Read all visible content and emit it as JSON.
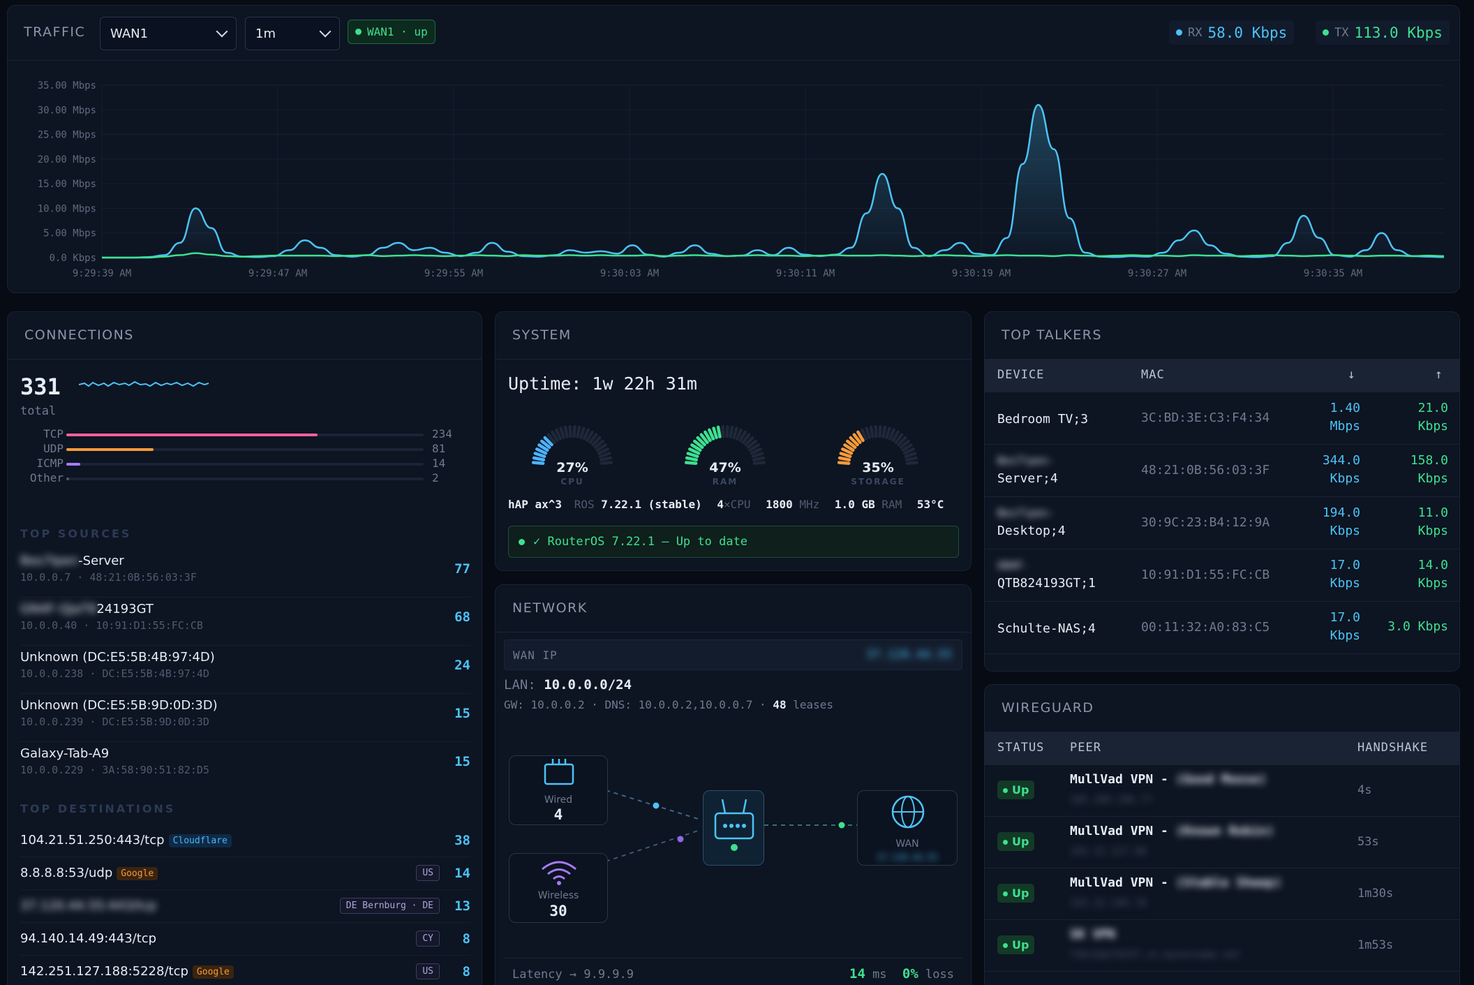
{
  "traffic": {
    "title": "TRAFFIC",
    "interface": "WAN1",
    "interval": "1m",
    "status": "WAN1 · up",
    "rx_label": "RX",
    "rx_value": "58.0 Kbps",
    "tx_label": "TX",
    "tx_value": "113.0 Kbps"
  },
  "chart_data": {
    "type": "area",
    "title": "",
    "xlabel": "",
    "ylabel": "",
    "y_ticks": [
      "35.00 Mbps",
      "30.00 Mbps",
      "25.00 Mbps",
      "20.00 Mbps",
      "15.00 Mbps",
      "10.00 Mbps",
      "5.00 Mbps",
      "0.0 Kbps"
    ],
    "x_ticks": [
      "9:29:39 AM",
      "9:29:47 AM",
      "9:29:55 AM",
      "9:30:03 AM",
      "9:30:11 AM",
      "9:30:19 AM",
      "9:30:27 AM",
      "9:30:35 AM"
    ],
    "ylim": [
      0,
      35
    ],
    "y_unit": "Mbps",
    "grid": true,
    "colors": {
      "rx": "#4cc3f5",
      "tx": "#3ee08f"
    },
    "series": [
      {
        "values": [
          0,
          0,
          0,
          0.1,
          0.5,
          3,
          10,
          6,
          1,
          0.2,
          0.1,
          0.3,
          1.5,
          3.5,
          2,
          0.5,
          0.2,
          0.5,
          2,
          3,
          1.5,
          2,
          1,
          0.3,
          1,
          3,
          1.2,
          0.3,
          0.2,
          0.5,
          1.5,
          1,
          1.3,
          0.8,
          2.5,
          0.6,
          0.2,
          1,
          2.5,
          0.8,
          0.3,
          0.4,
          1.5,
          0.5,
          2,
          0.6,
          0.3,
          0.6,
          2,
          9,
          17,
          10,
          2,
          0.3,
          1.5,
          3,
          0.8,
          0.5,
          4,
          19,
          31,
          22,
          8,
          1,
          0.2,
          0.1,
          0.3,
          0.2,
          1,
          3.5,
          5.5,
          2.5,
          0.8,
          0.2,
          0.1,
          0.3,
          3,
          8.5,
          4,
          0.5,
          0.2,
          1.5,
          5,
          1.5,
          0.3,
          0.2,
          0.1
        ]
      },
      {
        "values": [
          0,
          0,
          0,
          0,
          0.2,
          0.5,
          0.9,
          0.6,
          0.3,
          0.2,
          0.3,
          0.4,
          0.4,
          0.4,
          0.4,
          0.3,
          0.4,
          0.5,
          0.3,
          0.4,
          0.5,
          0.4,
          0.3,
          0.4,
          0.5,
          0.4,
          0.3,
          0.5,
          0.4,
          0.4,
          0.5,
          0.4,
          0.5,
          0.4,
          0.4,
          0.5,
          0.3,
          0.4,
          0.5,
          0.4,
          0.3,
          0.4,
          0.5,
          0.4,
          0.4,
          0.3,
          0.4,
          0.5,
          0.4,
          0.4,
          0.5,
          0.4,
          0.3,
          0.4,
          0.5,
          0.4,
          0.3,
          0.4,
          0.5,
          0.4,
          0.4,
          0.3,
          0.5,
          0.4,
          0.3,
          0.4,
          0.5,
          0.4,
          0.4,
          0.3,
          0.5,
          0.4,
          0.4,
          0.3,
          0.4,
          0.5,
          0.4,
          0.3,
          0.4,
          0.5,
          0.4,
          0.3,
          0.4,
          0.4,
          0.3,
          0.4,
          0.3
        ]
      }
    ]
  },
  "connections": {
    "title": "CONNECTIONS",
    "total": "331",
    "total_label": "total",
    "protocols": [
      {
        "name": "TCP",
        "count": "234",
        "fraction": 0.703,
        "color": "#f0609e"
      },
      {
        "name": "UDP",
        "count": "81",
        "fraction": 0.244,
        "color": "#f59a3a"
      },
      {
        "name": "ICMP",
        "count": "14",
        "fraction": 0.04,
        "color": "#a77bf3"
      },
      {
        "name": "Other",
        "count": "2",
        "fraction": 0.006,
        "color": "#4f5b6e"
      }
    ],
    "top_sources_title": "TOP SOURCES",
    "sources": [
      {
        "name_hidden": "Bes7lpen",
        "name": "-Server",
        "detail": "10.0.0.7 · 48:21:0B:56:03:3F",
        "count": "77"
      },
      {
        "name_hidden": "GN4F-QJaT8",
        "name": "24193GT",
        "detail": "10.0.0.40 · 10:91:D1:55:FC:CB",
        "count": "68"
      },
      {
        "name_hidden": "",
        "name": "Unknown (DC:E5:5B:4B:97:4D)",
        "detail": "10.0.0.238 · DC:E5:5B:4B:97:4D",
        "count": "24"
      },
      {
        "name_hidden": "",
        "name": "Unknown (DC:E5:5B:9D:0D:3D)",
        "detail": "10.0.0.239 · DC:E5:5B:9D:0D:3D",
        "count": "15"
      },
      {
        "name_hidden": "",
        "name": "Galaxy-Tab-A9",
        "detail": "10.0.0.229 · 3A:58:90:51:82:D5",
        "count": "15"
      }
    ],
    "top_destinations_title": "TOP DESTINATIONS",
    "destinations": [
      {
        "addr": "104.21.51.250:443/tcp",
        "tag": "Cloudflare",
        "country": "",
        "count": "38"
      },
      {
        "addr": "8.8.8.8:53/udp",
        "tag": "Google",
        "country": "US",
        "count": "14"
      },
      {
        "addr": "37.120.44.55:443/tcp",
        "tag": "",
        "country": "DE Bernburg · DE",
        "count": "13",
        "hidden": true
      },
      {
        "addr": "94.140.14.49:443/tcp",
        "tag": "",
        "country": "CY",
        "count": "8"
      },
      {
        "addr": "142.251.127.188:5228/tcp",
        "tag": "Google",
        "country": "US",
        "count": "8"
      }
    ]
  },
  "system": {
    "title": "SYSTEM",
    "uptime": "Uptime: 1w 22h 31m",
    "gauges": [
      {
        "label": "CPU",
        "value": "27%",
        "fraction": 0.27,
        "color": "#4cb3ff"
      },
      {
        "label": "RAM",
        "value": "47%",
        "fraction": 0.47,
        "color": "#3ee08f"
      },
      {
        "label": "STORAGE",
        "value": "35%",
        "fraction": 0.35,
        "color": "#f59a3a"
      }
    ],
    "model": "hAP ax^3",
    "ros_label": "ROS",
    "ros_version": "7.22.1 (stable)",
    "cpu_count": "4",
    "cpu_label": "×CPU",
    "freq": "1800",
    "freq_unit": "MHz",
    "ram": "1.0 GB",
    "ram_label": "RAM",
    "temp": "53°C",
    "update_status": "✓ RouterOS 7.22.1 — Up to date"
  },
  "network": {
    "title": "NETWORK",
    "wan_ip_label": "WAN IP",
    "wan_ip": "37.120.44.55",
    "lan_label": "LAN:",
    "lan": "10.0.0.0/24",
    "gw_line": "GW: 10.0.0.2 · DNS: 10.0.0.2,10.0.0.7 ·",
    "leases_count": "48",
    "leases_label": "leases",
    "wired_label": "Wired",
    "wired_count": "4",
    "wireless_label": "Wireless",
    "wireless_count": "30",
    "wan_label": "WAN",
    "wan_sub": "37.120.44.55",
    "latency_label": "Latency → 9.9.9.9",
    "latency_value": "14",
    "latency_unit": "ms",
    "loss_value": "0%",
    "loss_label": "loss"
  },
  "top_talkers": {
    "title": "TOP TALKERS",
    "col_device": "DEVICE",
    "col_mac": "MAC",
    "col_down": "↓",
    "col_up": "↑",
    "rows": [
      {
        "device_hidden": "",
        "device": "Bedroom TV;3",
        "mac": "3C:BD:3E:C3:F4:34",
        "down": "1.40",
        "down_unit": "Mbps",
        "up": "21.0",
        "up_unit": "Kbps"
      },
      {
        "device_hidden": "Bes7lpen-",
        "device": "Server;4",
        "mac": "48:21:0B:56:03:3F",
        "down": "344.0",
        "down_unit": "Kbps",
        "up": "158.0",
        "up_unit": "Kbps"
      },
      {
        "device_hidden": "Bes7lpen-",
        "device": "Desktop;4",
        "mac": "30:9C:23:B4:12:9A",
        "down": "194.0",
        "down_unit": "Kbps",
        "up": "11.0",
        "up_unit": "Kbps"
      },
      {
        "device_hidden": "GN4F-",
        "device": "QTB824193GT;1",
        "mac": "10:91:D1:55:FC:CB",
        "down": "17.0",
        "down_unit": "Kbps",
        "up": "14.0",
        "up_unit": "Kbps"
      },
      {
        "device_hidden": "",
        "device": "Schulte-NAS;4",
        "mac": "00:11:32:A0:83:C5",
        "down": "17.0",
        "down_unit": "Kbps",
        "up": "3.0 Kbps",
        "up_unit": ""
      }
    ]
  },
  "wireguard": {
    "title": "WIREGUARD",
    "col_status": "STATUS",
    "col_peer": "PEER",
    "col_handshake": "HANDSHAKE",
    "rows": [
      {
        "status": "Up",
        "peer": "MullVad VPN - ",
        "peer_hidden": "(Good Moose)",
        "sub": "185.209.196.77",
        "handshake": "4s"
      },
      {
        "status": "Up",
        "peer": "MullVad VPN - ",
        "peer_hidden": "(Known Robin)",
        "sub": "193.32.127.68",
        "handshake": "53s"
      },
      {
        "status": "Up",
        "peer": "MullVad VPN - ",
        "peer_hidden": "(Stable Sheep)",
        "sub": "193.32.249.70",
        "handshake": "1m30s"
      },
      {
        "status": "Up",
        "peer": "",
        "peer_hidden": "SK VPN",
        "sub": "f3bcbde7615f.sn.mynetname.net",
        "handshake": "1m53s"
      }
    ]
  }
}
